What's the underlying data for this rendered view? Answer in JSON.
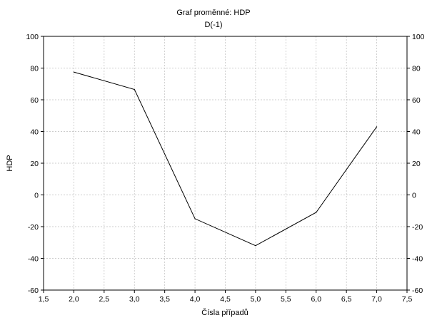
{
  "chart_data": {
    "type": "line",
    "title": "Graf proměnné: HDP",
    "subtitle": "D(-1)",
    "xlabel": "Čísla případů",
    "ylabel": "HDP",
    "xlim": [
      1.5,
      7.5
    ],
    "ylim": [
      -60,
      100
    ],
    "x_ticks": [
      "1,5",
      "2,0",
      "2,5",
      "3,0",
      "3,5",
      "4,0",
      "4,5",
      "5,0",
      "5,5",
      "6,0",
      "6,5",
      "7,0",
      "7,5"
    ],
    "y_ticks": [
      "100",
      "80",
      "60",
      "40",
      "20",
      "0",
      "-20",
      "-40",
      "-60"
    ],
    "y_ticks_right": [
      "100",
      "80",
      "60",
      "40",
      "20",
      "0",
      "-20",
      "-40",
      "-60"
    ],
    "grid": true,
    "series": [
      {
        "x": [
          2,
          3,
          4,
          5,
          6,
          7
        ],
        "y": [
          77.5,
          66.5,
          -15,
          -32,
          -11,
          43
        ]
      }
    ],
    "colors": {
      "line": "#000000",
      "grid": "#bdbdbd",
      "axis": "#000000"
    }
  }
}
